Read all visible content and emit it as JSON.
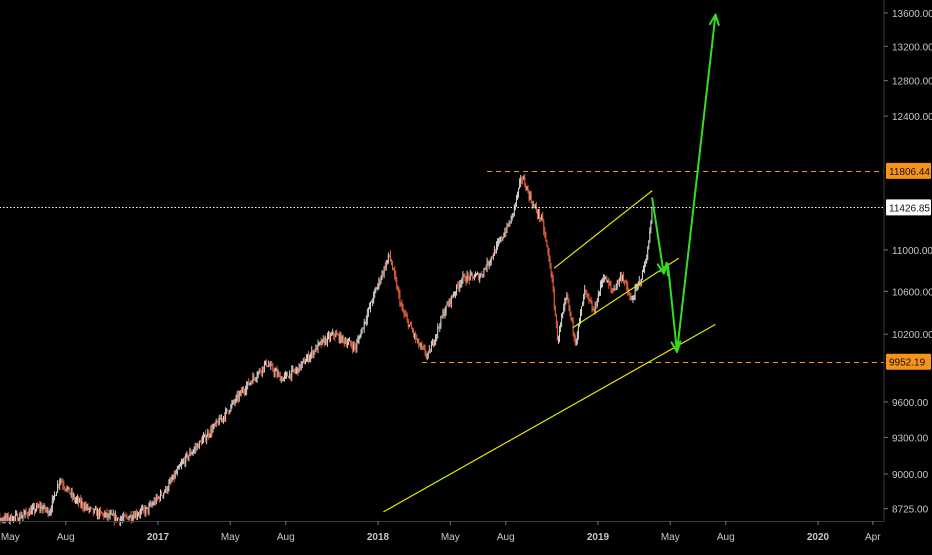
{
  "chart_data": {
    "type": "candlestick",
    "instrument": "",
    "x_axis": {
      "labels": [
        "May",
        "Aug",
        "2017",
        "May",
        "Aug",
        "2018",
        "May",
        "Aug",
        "2019",
        "May",
        "Aug",
        "2020",
        "Apr"
      ],
      "label_dates": [
        "2016-05-01",
        "2016-08-01",
        "2017-01-01",
        "2017-05-01",
        "2017-08-01",
        "2018-01-01",
        "2018-05-01",
        "2018-08-01",
        "2019-01-01",
        "2019-05-01",
        "2019-08-01",
        "2020-01-01",
        "2020-04-01"
      ],
      "range": [
        "2016-03-15",
        "2020-05-10"
      ]
    },
    "y_axis": {
      "ticks": [
        "13600.00",
        "13200.00",
        "12800.00",
        "12400.00",
        "11000.00",
        "10600.00",
        "10200.00",
        "9600.00",
        "9300.00",
        "9000.00",
        "8725.00"
      ],
      "tick_values": [
        13600,
        13200,
        12800,
        12400,
        11000,
        10600,
        10200,
        9600,
        9300,
        9000,
        8725
      ],
      "side": "right",
      "scale": "log",
      "range": [
        8700,
        13800
      ]
    },
    "price_labels": [
      {
        "text": "11806.44",
        "value": 11806.44,
        "style": "orange-dashed"
      },
      {
        "text": "11426.85",
        "value": 11426.85,
        "style": "white-dotted"
      },
      {
        "text": "9952.19",
        "value": 9952.19,
        "style": "orange-dashed"
      }
    ],
    "horizontal_lines": [
      {
        "value": 11806.44,
        "from": "2018-07-01",
        "color": "#f7931a",
        "dash": "dashed"
      },
      {
        "value": 9952.19,
        "from": "2018-03-15",
        "color": "#f7931a",
        "dash": "dashed"
      },
      {
        "value": 11426.85,
        "from": "2016-03-15",
        "color": "#ffffff",
        "dash": "dotted"
      }
    ],
    "trend_lines": [
      {
        "from": [
          "2018-01-10",
          8700
        ],
        "to": [
          "2019-07-15",
          10290
        ],
        "color": "#e6e600"
      },
      {
        "from": [
          "2018-10-20",
          10820
        ],
        "to": [
          "2019-04-01",
          11600
        ],
        "color": "#e6e600"
      },
      {
        "from": [
          "2018-11-20",
          10260
        ],
        "to": [
          "2019-05-15",
          10920
        ],
        "color": "#e6e600"
      }
    ],
    "projection_arrows": [
      {
        "points": [
          [
            "2019-04-01",
            11520
          ],
          [
            "2019-04-20",
            10770
          ]
        ],
        "color": "#33dd22"
      },
      {
        "points": [
          [
            "2019-04-20",
            10770
          ],
          [
            "2019-04-27",
            10860
          ]
        ],
        "color": "#33dd22"
      },
      {
        "points": [
          [
            "2019-04-27",
            10860
          ],
          [
            "2019-05-12",
            10040
          ]
        ],
        "color": "#33dd22"
      },
      {
        "points": [
          [
            "2019-05-12",
            10040
          ],
          [
            "2019-07-15",
            13580
          ]
        ],
        "color": "#33dd22"
      }
    ],
    "price_path": [
      [
        "2016-03-15",
        8630
      ],
      [
        "2016-05-15",
        8660
      ],
      [
        "2016-06-20",
        8740
      ],
      [
        "2016-07-05",
        8700
      ],
      [
        "2016-07-22",
        8960
      ],
      [
        "2016-08-15",
        8800
      ],
      [
        "2016-09-15",
        8700
      ],
      [
        "2016-11-01",
        8640
      ],
      [
        "2016-12-15",
        8720
      ],
      [
        "2017-01-15",
        8880
      ],
      [
        "2017-02-15",
        9120
      ],
      [
        "2017-03-20",
        9300
      ],
      [
        "2017-04-20",
        9480
      ],
      [
        "2017-05-25",
        9720
      ],
      [
        "2017-06-30",
        9940
      ],
      [
        "2017-07-25",
        9800
      ],
      [
        "2017-08-20",
        9880
      ],
      [
        "2017-09-25",
        10100
      ],
      [
        "2017-10-20",
        10200
      ],
      [
        "2017-11-25",
        10080
      ],
      [
        "2017-12-25",
        10560
      ],
      [
        "2018-01-20",
        10950
      ],
      [
        "2018-02-10",
        10420
      ],
      [
        "2018-03-10",
        10100
      ],
      [
        "2018-03-25",
        10000
      ],
      [
        "2018-04-20",
        10400
      ],
      [
        "2018-05-20",
        10720
      ],
      [
        "2018-06-20",
        10750
      ],
      [
        "2018-07-15",
        11000
      ],
      [
        "2018-08-10",
        11300
      ],
      [
        "2018-08-28",
        11750
      ],
      [
        "2018-09-15",
        11450
      ],
      [
        "2018-09-30",
        11300
      ],
      [
        "2018-10-15",
        10800
      ],
      [
        "2018-10-26",
        10150
      ],
      [
        "2018-11-10",
        10550
      ],
      [
        "2018-11-25",
        10130
      ],
      [
        "2018-12-10",
        10600
      ],
      [
        "2018-12-25",
        10400
      ],
      [
        "2019-01-10",
        10750
      ],
      [
        "2019-01-25",
        10600
      ],
      [
        "2019-02-10",
        10760
      ],
      [
        "2019-02-25",
        10500
      ],
      [
        "2019-03-15",
        10750
      ],
      [
        "2019-03-25",
        11000
      ],
      [
        "2019-04-01",
        11450
      ]
    ]
  }
}
